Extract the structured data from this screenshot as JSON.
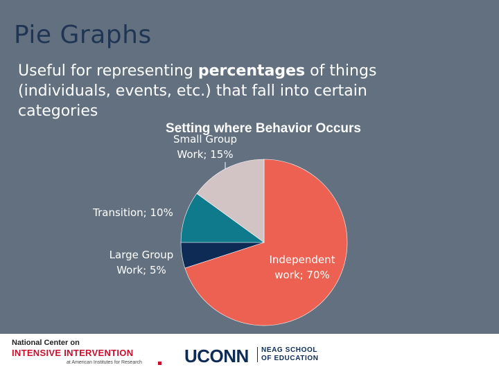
{
  "slide": {
    "title": "Pie Graphs",
    "body_pre": "Useful for representing ",
    "body_bold": "percentages",
    "body_post": " of things (individuals, events, etc.) that fall into certain categories"
  },
  "chart_data": {
    "type": "pie",
    "title": "Setting where Behavior Occurs",
    "slices": [
      {
        "label": "Independent work",
        "value": 70,
        "color": "#ec6152",
        "label_lines": [
          "Independent",
          "work; 70%"
        ],
        "label_color": "#ffffff"
      },
      {
        "label": "Large Group Work",
        "value": 5,
        "color": "#0d2b55",
        "label_lines": [
          "Large Group",
          "Work; 5%"
        ],
        "label_color": "#ffffff"
      },
      {
        "label": "Transition",
        "value": 10,
        "color": "#0e7a8c",
        "label_lines": [
          "Transition; 10%"
        ],
        "label_color": "#ffffff"
      },
      {
        "label": "Small Group Work",
        "value": 15,
        "color": "#d2c4c5",
        "label_lines": [
          "Small Group",
          "Work; 15%"
        ],
        "label_color": "#ffffff"
      }
    ],
    "start": "12 o'clock",
    "direction": "clockwise"
  },
  "footer": {
    "nci_line1": "National Center on",
    "nci_line2": "INTENSIVE INTERVENTION",
    "nci_line3": "at American Institutes for Research",
    "uconn": "UCONN",
    "neag_line1": "NEAG SCHOOL",
    "neag_line2": "OF EDUCATION"
  }
}
